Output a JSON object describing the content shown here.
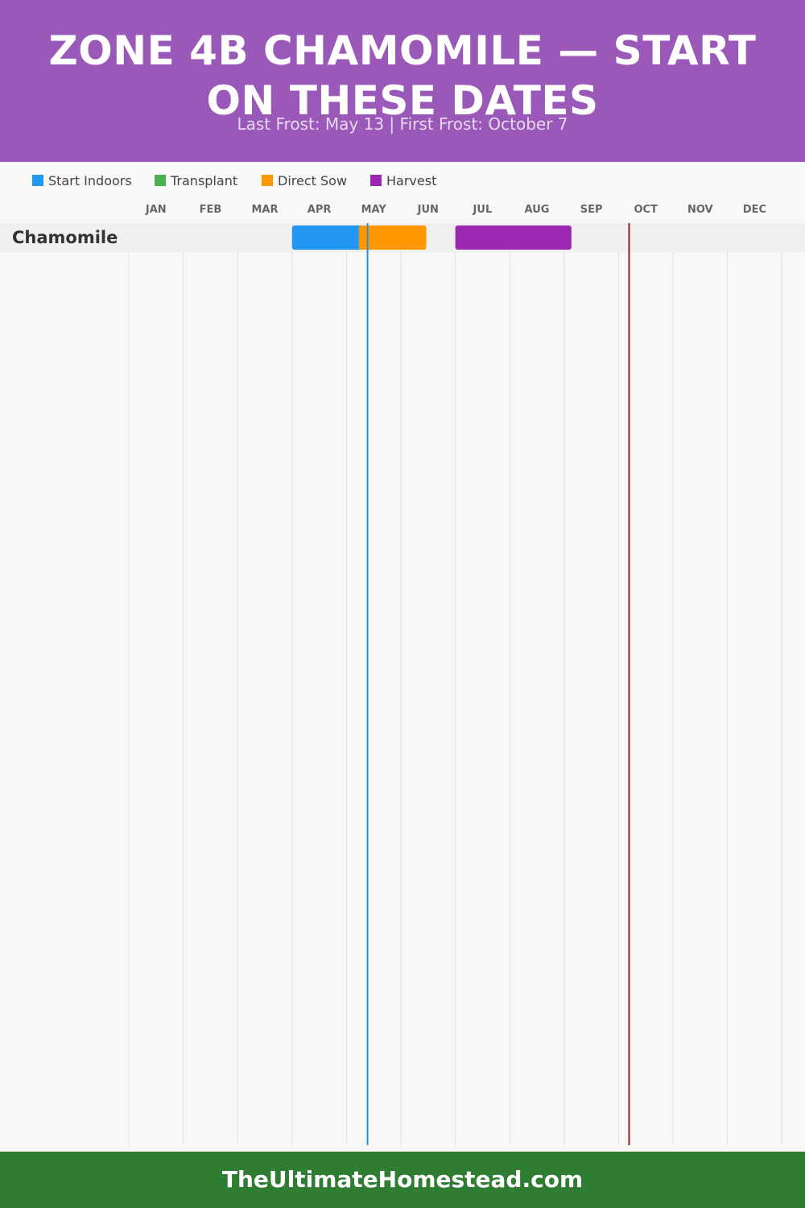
{
  "header": {
    "title": "ZONE 4B CHAMOMILE — START ON THESE DATES",
    "subtitle": "Last Frost: May 13 | First Frost: October 7",
    "background": "#9a59b8"
  },
  "legend": [
    {
      "label": "Start Indoors",
      "color": "#2196f3"
    },
    {
      "label": "Transplant",
      "color": "#4caf50"
    },
    {
      "label": "Direct Sow",
      "color": "#ff9800"
    },
    {
      "label": "Harvest",
      "color": "#9c27b0"
    }
  ],
  "chart_data": {
    "type": "gantt",
    "months": [
      "JAN",
      "FEB",
      "MAR",
      "APR",
      "MAY",
      "JUN",
      "JUL",
      "AUG",
      "SEP",
      "OCT",
      "NOV",
      "DEC"
    ],
    "rows": [
      {
        "label": "Chamomile",
        "bars": [
          {
            "phase": "Start Indoors",
            "start": "Apr 1",
            "end": "May 13",
            "color": "#2196f3"
          },
          {
            "phase": "Direct Sow",
            "start": "May 8",
            "end": "Jun 15",
            "color": "#ff9800"
          },
          {
            "phase": "Harvest",
            "start": "Jul 1",
            "end": "Sep 5",
            "color": "#9c27b0"
          }
        ]
      }
    ],
    "markers": [
      {
        "name": "Last Frost",
        "date": "May 13",
        "color": "#2f8fd8"
      },
      {
        "name": "First Frost",
        "date": "Oct 7",
        "color": "#9b1c1c"
      }
    ],
    "grid": true
  },
  "footer": {
    "text": "TheUltimateHomestead.com",
    "background": "#2e7d32"
  }
}
